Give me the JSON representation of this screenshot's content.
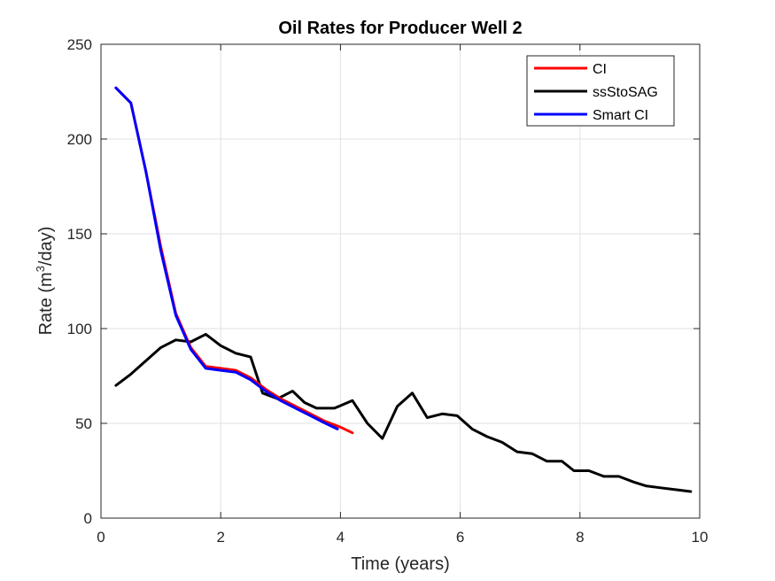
{
  "chart_data": {
    "type": "line",
    "title": "Oil Rates for Producer Well 2",
    "xlabel": "Time (years)",
    "ylabel_prefix": "Rate (m",
    "ylabel_sup": "3",
    "ylabel_suffix": "/day)",
    "xlim": [
      0,
      10
    ],
    "ylim": [
      0,
      250
    ],
    "xticks": [
      0,
      2,
      4,
      6,
      8,
      10
    ],
    "yticks": [
      0,
      50,
      100,
      150,
      200,
      250
    ],
    "grid": true,
    "legend_position": "top-right",
    "series": [
      {
        "name": "CI",
        "color": "#ff0000",
        "x": [
          0.25,
          0.5,
          0.75,
          1.0,
          1.25,
          1.5,
          1.75,
          2.0,
          2.25,
          2.5,
          2.75,
          3.0,
          3.25,
          3.5,
          3.75,
          4.0,
          4.2
        ],
        "y": [
          227,
          219,
          183,
          143,
          108,
          90,
          80,
          79,
          78,
          74,
          68,
          63,
          59,
          55,
          51,
          48,
          45
        ]
      },
      {
        "name": "ssStoSAG",
        "color": "#000000",
        "x": [
          0.25,
          0.5,
          0.75,
          1.0,
          1.25,
          1.5,
          1.75,
          2.0,
          2.25,
          2.5,
          2.7,
          2.95,
          3.2,
          3.4,
          3.6,
          3.9,
          4.2,
          4.45,
          4.7,
          4.95,
          5.2,
          5.45,
          5.7,
          5.95,
          6.2,
          6.45,
          6.7,
          6.95,
          7.2,
          7.45,
          7.7,
          7.9,
          8.15,
          8.4,
          8.65,
          8.9,
          9.1,
          9.35,
          9.6,
          9.85
        ],
        "y": [
          70,
          76,
          83,
          90,
          94,
          93,
          97,
          91,
          87,
          85,
          66,
          63,
          67,
          61,
          58,
          58,
          62,
          50,
          42,
          59,
          66,
          53,
          55,
          54,
          47,
          43,
          40,
          35,
          34,
          30,
          30,
          25,
          25,
          22,
          22,
          19,
          17,
          16,
          15,
          14
        ]
      },
      {
        "name": "Smart CI",
        "color": "#0000ff",
        "x": [
          0.25,
          0.5,
          0.75,
          1.0,
          1.25,
          1.5,
          1.75,
          2.0,
          2.25,
          2.5,
          2.75,
          3.0,
          3.25,
          3.5,
          3.75,
          3.95
        ],
        "y": [
          227,
          219,
          183,
          141,
          107,
          89,
          79,
          78,
          77,
          73,
          67,
          62,
          58,
          54,
          50,
          47
        ]
      }
    ]
  }
}
